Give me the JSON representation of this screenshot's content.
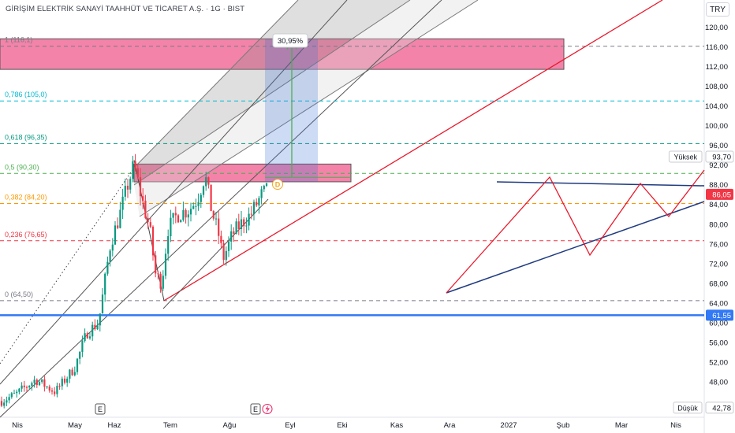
{
  "header": {
    "symbol_title": "GİRİŞİM ELEKTRİK SANAYİ TAAHHÜT VE TİCARET A.Ş. · 1G · BIST",
    "currency": "TRY"
  },
  "chart_data": {
    "type": "candlestick",
    "interval": "1G",
    "exchange": "BIST",
    "currency": "TRY",
    "ylim": [
      40.0,
      124.0
    ],
    "y_ticks": [
      48.0,
      52.0,
      56.0,
      60.0,
      64.0,
      68.0,
      72.0,
      76.0,
      80.0,
      84.0,
      88.0,
      92.0,
      96.0,
      100.0,
      104.0,
      108.0,
      112.0,
      116.0,
      120.0
    ],
    "y_tick_labels": [
      "48,00",
      "52,00",
      "56,00",
      "60,00",
      "64,00",
      "68,00",
      "72,00",
      "76,00",
      "80,00",
      "84,00",
      "88,00",
      "92,00",
      "96,00",
      "100,00",
      "104,00",
      "108,00",
      "112,00",
      "116,00",
      "120,00"
    ],
    "x_ticks": [
      "Nis",
      "May",
      "Haz",
      "Tem",
      "Ağu",
      "Eyl",
      "Eki",
      "Kas",
      "Ara",
      "2027",
      "Şub",
      "Mar",
      "Nis"
    ],
    "price_series_approx": [
      {
        "date": "Nis start",
        "close": 44.0
      },
      {
        "date": "Nis mid",
        "close": 46.0
      },
      {
        "date": "May start",
        "close": 47.5
      },
      {
        "date": "May mid",
        "close": 52.0
      },
      {
        "date": "May end",
        "close": 60.0
      },
      {
        "date": "Haz mid",
        "close": 82.0
      },
      {
        "date": "Haz peak",
        "close": 93.0
      },
      {
        "date": "Haz end",
        "close": 82.0
      },
      {
        "date": "Tem low",
        "close": 65.0
      },
      {
        "date": "Tem mid",
        "close": 80.0
      },
      {
        "date": "Tem peak",
        "close": 91.0
      },
      {
        "date": "Ağu low",
        "close": 72.0
      },
      {
        "date": "Ağu mid",
        "close": 80.0
      },
      {
        "date": "Ağu end",
        "close": 86.0
      }
    ],
    "fib_levels": [
      {
        "label": "1 (116,1)",
        "value": 116.1,
        "color": "#787b86"
      },
      {
        "label": "0,786 (105,0)",
        "value": 105.0,
        "color": "#00bcd4"
      },
      {
        "label": "0,618 (96,35)",
        "value": 96.35,
        "color": "#089981"
      },
      {
        "label": "0,5 (90,30)",
        "value": 90.3,
        "color": "#4caf50"
      },
      {
        "label": "0,382 (84,20)",
        "value": 84.2,
        "color": "#ff9800"
      },
      {
        "label": "0,236 (76,65)",
        "value": 76.65,
        "color": "#f23645"
      },
      {
        "label": "0 (64,50)",
        "value": 64.5,
        "color": "#787b86"
      }
    ],
    "horizontal_line": {
      "value": 61.55,
      "color": "#3179f5"
    },
    "zones": [
      {
        "from": 111.4,
        "to": 117.6,
        "color": "#e91e63"
      },
      {
        "from": 88.6,
        "to": 92.2,
        "color": "#e91e63"
      }
    ],
    "measure_label": "30,95%",
    "price_labels": [
      {
        "text": "93,70",
        "tag": "Yüksek",
        "value": 93.7,
        "style": "plain"
      },
      {
        "text": "86,05",
        "value": 86.05,
        "style": "red"
      },
      {
        "text": "61,55",
        "value": 61.55,
        "style": "blue"
      },
      {
        "text": "42,78",
        "tag": "Düşük",
        "value": 42.78,
        "style": "plain"
      }
    ],
    "event_markers": [
      "E",
      "E"
    ],
    "dividend_marker": "D"
  }
}
